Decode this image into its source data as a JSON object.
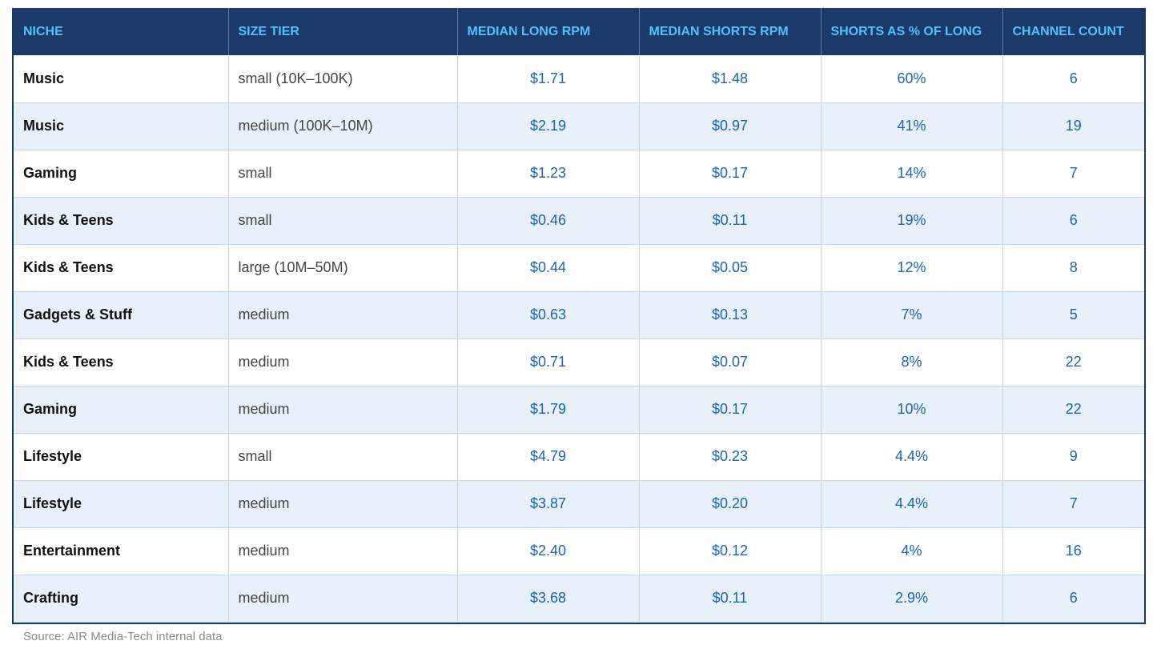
{
  "table": {
    "headers": [
      "NICHE",
      "SIZE TIER",
      "MEDIAN LONG RPM",
      "MEDIAN SHORTS RPM",
      "SHORTS AS % OF LONG",
      "CHANNEL COUNT"
    ],
    "rows": [
      [
        "Music",
        "small (10K–100K)",
        "$1.71",
        "$1.48",
        "60%",
        "6"
      ],
      [
        "Music",
        "medium (100K–10M)",
        "$2.19",
        "$0.97",
        "41%",
        "19"
      ],
      [
        "Gaming",
        "small",
        "$1.23",
        "$0.17",
        "14%",
        "7"
      ],
      [
        "Kids & Teens",
        "small",
        "$0.46",
        "$0.11",
        "19%",
        "6"
      ],
      [
        "Kids & Teens",
        "large (10M–50M)",
        "$0.44",
        "$0.05",
        "12%",
        "8"
      ],
      [
        "Gadgets & Stuff",
        "medium",
        "$0.63",
        "$0.13",
        "7%",
        "5"
      ],
      [
        "Kids & Teens",
        "medium",
        "$0.71",
        "$0.07",
        "8%",
        "22"
      ],
      [
        "Gaming",
        "medium",
        "$1.79",
        "$0.17",
        "10%",
        "22"
      ],
      [
        "Lifestyle",
        "small",
        "$4.79",
        "$0.23",
        "4.4%",
        "9"
      ],
      [
        "Lifestyle",
        "medium",
        "$3.87",
        "$0.20",
        "4.4%",
        "7"
      ],
      [
        "Entertainment",
        "medium",
        "$2.40",
        "$0.12",
        "4%",
        "16"
      ],
      [
        "Crafting",
        "medium",
        "$3.68",
        "$0.11",
        "2.9%",
        "6"
      ]
    ]
  },
  "source": "Source: AIR Media-Tech internal data",
  "colors": {
    "header_bg": "#1b3a6b",
    "header_text": "#4fc3f7",
    "number_text": "#1a63b8",
    "stripe": "#e8f0f9"
  }
}
